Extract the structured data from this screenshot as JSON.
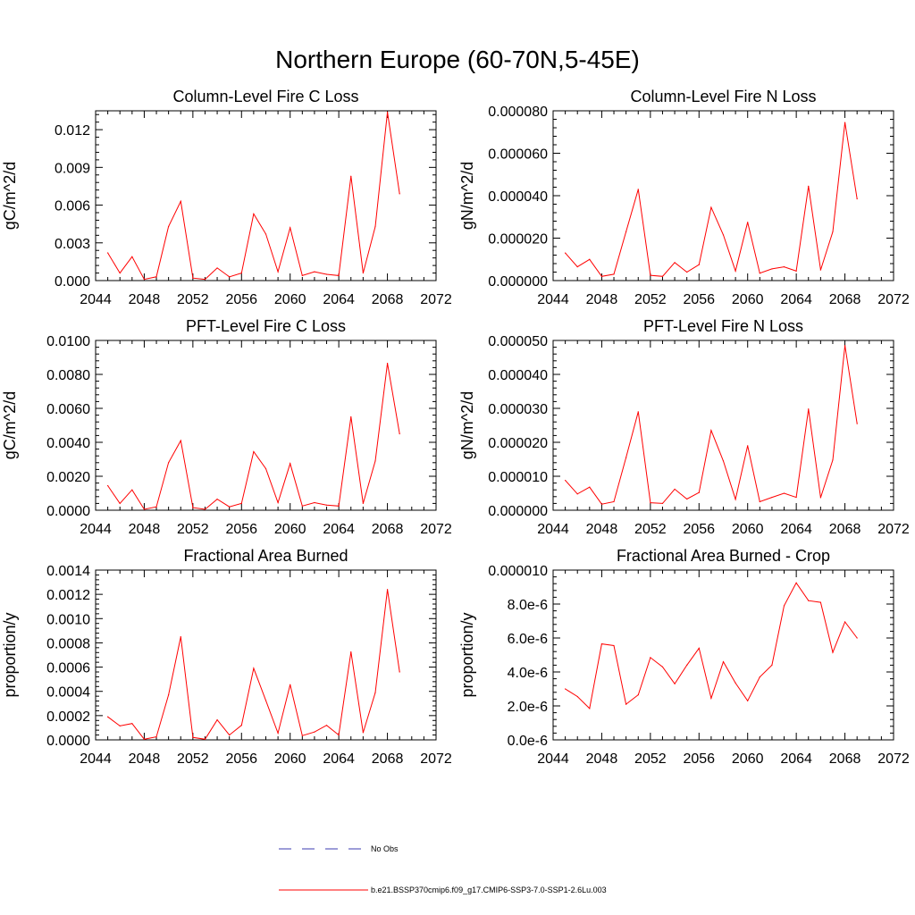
{
  "figure": {
    "title": "Northern Europe (60-70N,5-45E)",
    "legend": [
      {
        "label": "No Obs",
        "color": "#3b3bb0",
        "style": "dashed"
      },
      {
        "label": "b.e21.BSSP370cmip6.f09_g17.CMIP6-SSP3-7.0-SSP1-2.6Lu.003",
        "color": "#ff0000",
        "style": "solid"
      }
    ]
  },
  "chart_data": [
    {
      "type": "line",
      "title": "Column-Level Fire C Loss",
      "ylabel": "gC/m^2/d",
      "xlim": [
        2044,
        2072
      ],
      "ylim": [
        0,
        0.0135
      ],
      "xticks": [
        2044,
        2048,
        2052,
        2056,
        2060,
        2064,
        2068,
        2072
      ],
      "yticks": [
        0,
        0.003,
        0.006,
        0.009,
        0.012
      ],
      "ytick_labels": [
        "0.000",
        "0.003",
        "0.006",
        "0.009",
        "0.012"
      ],
      "series": [
        {
          "color": "#ff0000",
          "x": [
            2045,
            2046,
            2047,
            2048,
            2049,
            2050,
            2051,
            2052,
            2053,
            2054,
            2055,
            2056,
            2057,
            2058,
            2059,
            2060,
            2061,
            2062,
            2063,
            2064,
            2065,
            2066,
            2067,
            2068,
            2069
          ],
          "y": [
            0.0022,
            0.0006,
            0.0019,
            0.0001,
            0.0003,
            0.0043,
            0.0063,
            0.0002,
            0.0001,
            0.001,
            0.0003,
            0.0006,
            0.0053,
            0.0037,
            0.0007,
            0.0042,
            0.0004,
            0.0007,
            0.0005,
            0.0004,
            0.0083,
            0.0006,
            0.0043,
            0.0134,
            0.0069
          ]
        }
      ]
    },
    {
      "type": "line",
      "title": "Column-Level Fire N Loss",
      "ylabel": "gN/m^2/d",
      "xlim": [
        2044,
        2072
      ],
      "ylim": [
        0,
        8e-05
      ],
      "xticks": [
        2044,
        2048,
        2052,
        2056,
        2060,
        2064,
        2068,
        2072
      ],
      "yticks": [
        0,
        2e-05,
        4e-05,
        6e-05,
        8e-05
      ],
      "ytick_labels": [
        "0.000000",
        "0.000020",
        "0.000040",
        "0.000060",
        "0.000080"
      ],
      "series": [
        {
          "color": "#ff0000",
          "x": [
            2045,
            2046,
            2047,
            2048,
            2049,
            2050,
            2051,
            2052,
            2053,
            2054,
            2055,
            2056,
            2057,
            2058,
            2059,
            2060,
            2061,
            2062,
            2063,
            2064,
            2065,
            2066,
            2067,
            2068,
            2069
          ],
          "y": [
            1.3e-05,
            6.5e-06,
            1e-05,
            2e-06,
            3e-06,
            2.3e-05,
            4.3e-05,
            2.5e-06,
            2e-06,
            8.5e-06,
            4e-06,
            7.5e-06,
            3.45e-05,
            2.15e-05,
            4.5e-06,
            2.75e-05,
            3.5e-06,
            5.5e-06,
            6.5e-06,
            4.5e-06,
            4.45e-05,
            5e-06,
            2.3e-05,
            7.45e-05,
            3.85e-05
          ]
        }
      ]
    },
    {
      "type": "line",
      "title": "PFT-Level Fire C Loss",
      "ylabel": "gC/m^2/d",
      "xlim": [
        2044,
        2072
      ],
      "ylim": [
        0,
        0.01
      ],
      "xticks": [
        2044,
        2048,
        2052,
        2056,
        2060,
        2064,
        2068,
        2072
      ],
      "yticks": [
        0,
        0.002,
        0.004,
        0.006,
        0.008,
        0.01
      ],
      "ytick_labels": [
        "0.0000",
        "0.0020",
        "0.0040",
        "0.0060",
        "0.0080",
        "0.0100"
      ],
      "series": [
        {
          "color": "#ff0000",
          "x": [
            2045,
            2046,
            2047,
            2048,
            2049,
            2050,
            2051,
            2052,
            2053,
            2054,
            2055,
            2056,
            2057,
            2058,
            2059,
            2060,
            2061,
            2062,
            2063,
            2064,
            2065,
            2066,
            2067,
            2068,
            2069
          ],
          "y": [
            0.00145,
            0.0004,
            0.0012,
            5e-05,
            0.0002,
            0.0028,
            0.0041,
            0.00015,
            5e-05,
            0.00065,
            0.0002,
            0.0004,
            0.00345,
            0.00245,
            0.00045,
            0.00275,
            0.00025,
            0.00045,
            0.0003,
            0.00025,
            0.0055,
            0.0004,
            0.0029,
            0.00865,
            0.0045
          ]
        }
      ]
    },
    {
      "type": "line",
      "title": "PFT-Level Fire N Loss",
      "ylabel": "gN/m^2/d",
      "xlim": [
        2044,
        2072
      ],
      "ylim": [
        0,
        5e-05
      ],
      "xticks": [
        2044,
        2048,
        2052,
        2056,
        2060,
        2064,
        2068,
        2072
      ],
      "yticks": [
        0,
        1e-05,
        2e-05,
        3e-05,
        4e-05,
        5e-05
      ],
      "ytick_labels": [
        "0.000000",
        "0.000010",
        "0.000020",
        "0.000030",
        "0.000040",
        "0.000050"
      ],
      "series": [
        {
          "color": "#ff0000",
          "x": [
            2045,
            2046,
            2047,
            2048,
            2049,
            2050,
            2051,
            2052,
            2053,
            2054,
            2055,
            2056,
            2057,
            2058,
            2059,
            2060,
            2061,
            2062,
            2063,
            2064,
            2065,
            2066,
            2067,
            2068,
            2069
          ],
          "y": [
            8.8e-06,
            4.8e-06,
            6.8e-06,
            1.8e-06,
            2.5e-06,
            1.55e-05,
            2.9e-05,
            2.2e-06,
            2e-06,
            6.2e-06,
            3.3e-06,
            5.2e-06,
            2.35e-05,
            1.45e-05,
            3.2e-06,
            1.9e-05,
            2.5e-06,
            3.8e-06,
            5e-06,
            3.8e-06,
            2.98e-05,
            3.7e-06,
            1.48e-05,
            4.85e-05,
            2.55e-05
          ]
        }
      ]
    },
    {
      "type": "line",
      "title": "Fractional Area Burned",
      "ylabel": "proportion/y",
      "xlim": [
        2044,
        2072
      ],
      "ylim": [
        0,
        0.0014
      ],
      "xticks": [
        2044,
        2048,
        2052,
        2056,
        2060,
        2064,
        2068,
        2072
      ],
      "yticks": [
        0,
        0.0002,
        0.0004,
        0.0006,
        0.0008,
        0.001,
        0.0012,
        0.0014
      ],
      "ytick_labels": [
        "0.0000",
        "0.0002",
        "0.0004",
        "0.0006",
        "0.0008",
        "0.0010",
        "0.0012",
        "0.0014"
      ],
      "series": [
        {
          "color": "#ff0000",
          "x": [
            2045,
            2046,
            2047,
            2048,
            2049,
            2050,
            2051,
            2052,
            2053,
            2054,
            2055,
            2056,
            2057,
            2058,
            2059,
            2060,
            2061,
            2062,
            2063,
            2064,
            2065,
            2066,
            2067,
            2068,
            2069
          ],
          "y": [
            0.00019,
            0.000115,
            0.000135,
            5e-06,
            2.5e-05,
            0.00037,
            0.00085,
            2e-05,
            5e-06,
            0.000165,
            4e-05,
            0.00012,
            0.00059,
            0.000325,
            5.5e-05,
            0.000455,
            3.5e-05,
            6.5e-05,
            0.00012,
            4e-05,
            0.000725,
            6e-05,
            0.00039,
            0.00124,
            0.00056
          ]
        }
      ]
    },
    {
      "type": "line",
      "title": "Fractional Area Burned - Crop",
      "ylabel": "proportion/y",
      "xlim": [
        2044,
        2072
      ],
      "ylim": [
        0,
        1e-05
      ],
      "xticks": [
        2044,
        2048,
        2052,
        2056,
        2060,
        2064,
        2068,
        2072
      ],
      "yticks": [
        0,
        2e-06,
        4e-06,
        6e-06,
        8e-06,
        1e-05
      ],
      "ytick_labels": [
        "0.0e-6",
        "2.0e-6",
        "4.0e-6",
        "6.0e-6",
        "8.0e-6",
        "0.000010"
      ],
      "series": [
        {
          "color": "#ff0000",
          "x": [
            2045,
            2046,
            2047,
            2048,
            2049,
            2050,
            2051,
            2052,
            2053,
            2054,
            2055,
            2056,
            2057,
            2058,
            2059,
            2060,
            2061,
            2062,
            2063,
            2064,
            2065,
            2066,
            2067,
            2068,
            2069
          ],
          "y": [
            3e-06,
            2.55e-06,
            1.85e-06,
            5.65e-06,
            5.55e-06,
            2.1e-06,
            2.65e-06,
            4.85e-06,
            4.3e-06,
            3.3e-06,
            4.4e-06,
            5.4e-06,
            2.45e-06,
            4.6e-06,
            3.35e-06,
            2.3e-06,
            3.7e-06,
            4.4e-06,
            7.9e-06,
            9.25e-06,
            8.2e-06,
            8.1e-06,
            5.15e-06,
            6.95e-06,
            6e-06
          ]
        }
      ]
    }
  ]
}
